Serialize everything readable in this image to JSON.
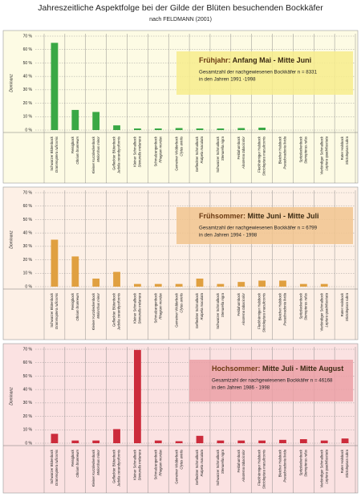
{
  "title": "Jahreszeitliche Aspektfolge bei der Gilde der Blüten besuchenden Bockkäfer",
  "subtitle": "nach FELDMANN (2001)",
  "chart_data": [
    {
      "type": "bar",
      "ylabel": "Dominanz",
      "color": "#3aa845",
      "background": "#fdfbe4",
      "box_color": "#f7ec8c",
      "annotation": {
        "season": "Frühjahr:",
        "period": "Anfang Mai - Mitte Juni",
        "lines": [
          "Gesamtzahl der nachgewiesenen Bockkäfer n = 8331",
          "in den Jahren 1991 -1998"
        ]
      },
      "ylim": [
        0,
        70
      ],
      "yticks": [
        {
          "value": 0,
          "label": "0 %"
        },
        {
          "value": 10,
          "label": "10 %"
        },
        {
          "value": 20,
          "label": "20 %"
        },
        {
          "value": 30,
          "label": "30 %"
        },
        {
          "value": 40,
          "label": "40 %"
        },
        {
          "value": 50,
          "label": "50 %"
        },
        {
          "value": 60,
          "label": "60 %"
        },
        {
          "value": 70,
          "label": "70 %"
        }
      ],
      "categories": [
        [
          "Schwarzer Blütenbock",
          "Grammoptera ruficornis"
        ],
        [
          "Reisigbock",
          "Obrium brunneum"
        ],
        [
          "Kleiner Kurzdeckenbock",
          "Molorchus minor"
        ],
        [
          "Gefleckter Blütenbock",
          "Judolia cerambyciformis"
        ],
        [
          "Kleiner Schmalbock",
          "Stenurella melanura"
        ],
        [
          "Schmalzangenbock",
          "Rhagium mordax"
        ],
        [
          "Gemeiner Widderbock",
          "Clytus arietis"
        ],
        [
          "Gefleckter Schmalbock",
          "Rutpela maculata"
        ],
        [
          "Schwarzer Schmalbock",
          "Stenurella nigra"
        ],
        [
          "Feldahornbock",
          "Alosterna tabacicolor"
        ],
        [
          "Fleckhörniger Halsbock",
          "Stictoleptura maculicornis"
        ],
        [
          "Bleicher Halsbock",
          "Pseudovadonia livida"
        ],
        [
          "Spitzdeckenbock",
          "Stenopterus rufus"
        ],
        [
          "Vierbindiger Schmalbock",
          "Leptura quadrifasciata"
        ],
        [
          "Roter Halsbock",
          "Stictoleptura rubra"
        ]
      ],
      "values": [
        65,
        15,
        13.5,
        3.5,
        1.2,
        1.2,
        1.5,
        1.2,
        1.2,
        1.5,
        1.8,
        null,
        null,
        null,
        null
      ]
    },
    {
      "type": "bar",
      "ylabel": "Dominanz",
      "color": "#e0a040",
      "background": "#fdf0e6",
      "box_color": "#f1c48e",
      "annotation": {
        "season": "Frühsommer:",
        "period": "Mitte Juni - Mitte Juli",
        "lines": [
          "Gesamtzahl der nachgewiesenen Bockkäfer n = 6799",
          "in den Jahren 1994 - 1998"
        ]
      },
      "ylim": [
        0,
        70
      ],
      "yticks": [
        {
          "value": 0,
          "label": "0 %"
        },
        {
          "value": 10,
          "label": "10 %"
        },
        {
          "value": 20,
          "label": "20 %"
        },
        {
          "value": 30,
          "label": "30 %"
        },
        {
          "value": 40,
          "label": "40 %"
        },
        {
          "value": 50,
          "label": "50 %"
        },
        {
          "value": 60,
          "label": "60 %"
        },
        {
          "value": 70,
          "label": "70 %"
        }
      ],
      "categories": [
        [
          "Schwarzer Blütenbock",
          "Grammoptera ruficornis"
        ],
        [
          "Reisigbock",
          "Obrium brunneum"
        ],
        [
          "Kleiner Kurzdeckenbock",
          "Molorchus minor"
        ],
        [
          "Gefleckter Blütenbock",
          "Judolia cerambyciformis"
        ],
        [
          "Kleiner Schmalbock",
          "Stenurella melanura"
        ],
        [
          "Schmalzangenbock",
          "Rhagium mordax"
        ],
        [
          "Gemeiner Widderbock",
          "Clytus arietis"
        ],
        [
          "Gefleckter Schmalbock",
          "Rutpela maculata"
        ],
        [
          "Schwarzer Schmalbock",
          "Stenurella nigra"
        ],
        [
          "Feldahornbock",
          "Alosterna tabacicolor"
        ],
        [
          "Fleckhörniger Halsbock",
          "Stictoleptura maculicornis"
        ],
        [
          "Bleicher Halsbock",
          "Pseudovadonia livida"
        ],
        [
          "Spitzdeckenbock",
          "Stenopterus rufus"
        ],
        [
          "Vierbindiger Schmalbock",
          "Leptura quadrifasciata"
        ],
        [
          "Roter Halsbock",
          "Stictoleptura rubra"
        ]
      ],
      "values": [
        35,
        22.5,
        6,
        11,
        2,
        2,
        2,
        6,
        2,
        3.5,
        4.5,
        4.5,
        2,
        2,
        null
      ]
    },
    {
      "type": "bar",
      "ylabel": "Dominanz",
      "color": "#cc2b3b",
      "background": "#fbe2e2",
      "box_color": "#eba0a6",
      "annotation": {
        "season": "Hochsommer:",
        "period": "Mitte Juli - Mitte August",
        "lines": [
          "Gesamtzahl der nachgewiesenen Bockkäfer n = 46168",
          "in den Jahren 1986 - 1998"
        ]
      },
      "ylim": [
        0,
        70
      ],
      "yticks": [
        {
          "value": 0,
          "label": "0 %"
        },
        {
          "value": 10,
          "label": "10 %"
        },
        {
          "value": 20,
          "label": "20 %"
        },
        {
          "value": 30,
          "label": "30 %"
        },
        {
          "value": 40,
          "label": "40 %"
        },
        {
          "value": 50,
          "label": "50 %"
        },
        {
          "value": 60,
          "label": "60 %"
        },
        {
          "value": 70,
          "label": "70 %"
        }
      ],
      "categories": [
        [
          "Schwarzer Blütenbock",
          "Grammoptera ruficornis"
        ],
        [
          "Reisigbock",
          "Obrium brunneum"
        ],
        [
          "Kleiner Kurzdeckenbock",
          "Molorchus minor"
        ],
        [
          "Gefleckter Blütenbock",
          "Judolia cerambyciformis"
        ],
        [
          "Kleiner Schmalbock",
          "Stenurella melanura"
        ],
        [
          "Schmalzangenbock",
          "Rhagium mordax"
        ],
        [
          "Gemeiner Widderbock",
          "Clytus arietis"
        ],
        [
          "Gefleckter Schmalbock",
          "Rutpela maculata"
        ],
        [
          "Schwarzer Schmalbock",
          "Stenurella nigra"
        ],
        [
          "Feldahornbock",
          "Alosterna tabacicolor"
        ],
        [
          "Fleckhörniger Halsbock",
          "Stictoleptura maculicornis"
        ],
        [
          "Bleicher Halsbock",
          "Pseudovadonia livida"
        ],
        [
          "Spitzdeckenbock",
          "Stenopterus rufus"
        ],
        [
          "Vierbindiger Schmalbock",
          "Leptura quadrifasciata"
        ],
        [
          "Roter Halsbock",
          "Stictoleptura rubra"
        ]
      ],
      "values": [
        7,
        2,
        2,
        10.5,
        69.5,
        2,
        1.5,
        5.5,
        2,
        2,
        2,
        2.5,
        3,
        2,
        3.5
      ]
    }
  ]
}
